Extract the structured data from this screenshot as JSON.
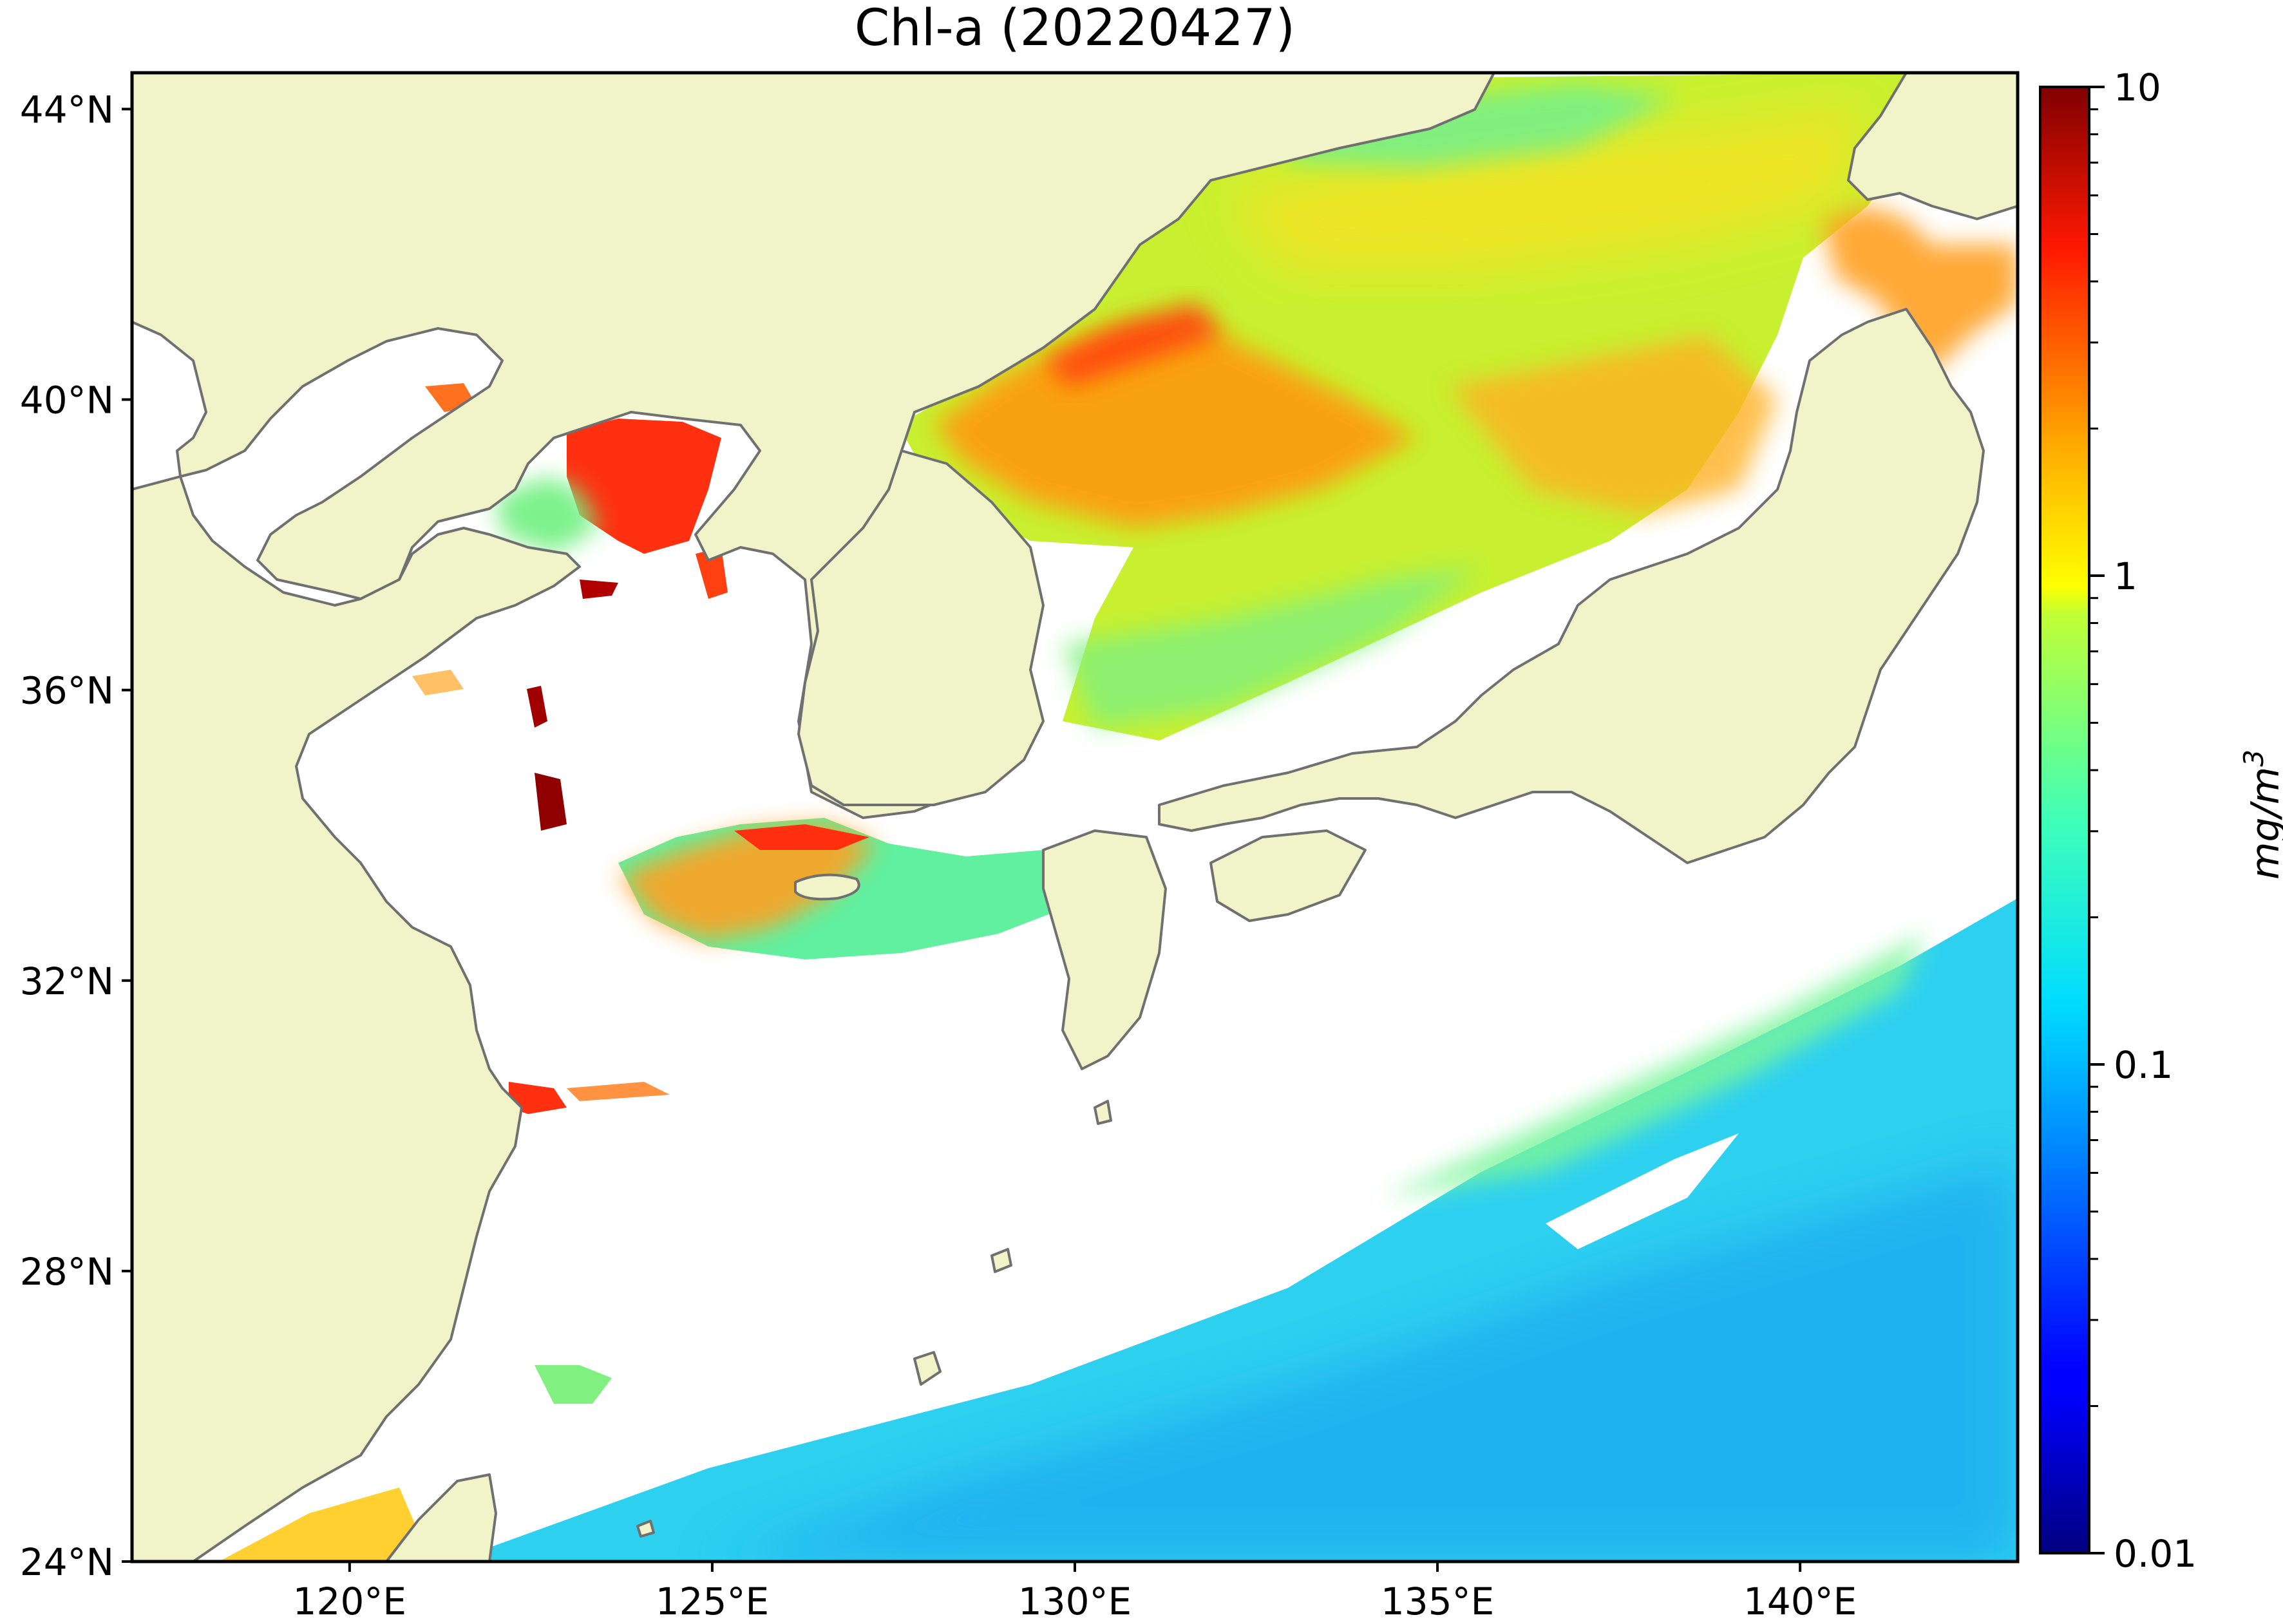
{
  "title": "Chl-a (20220427)",
  "map": {
    "lon_range": [
      117,
      143
    ],
    "lat_range": [
      24,
      44.5
    ],
    "land_color": "#f0f4c8",
    "ocean_nodata_color": "#ffffff",
    "coastline_color": "#707070",
    "lat_ticks": [
      {
        "value": 44,
        "label": "44°N"
      },
      {
        "value": 40,
        "label": "40°N"
      },
      {
        "value": 36,
        "label": "36°N"
      },
      {
        "value": 32,
        "label": "32°N"
      },
      {
        "value": 28,
        "label": "28°N"
      },
      {
        "value": 24,
        "label": "24°N"
      }
    ],
    "lon_ticks": [
      {
        "value": 120,
        "label": "120°E"
      },
      {
        "value": 125,
        "label": "125°E"
      },
      {
        "value": 130,
        "label": "130°E"
      },
      {
        "value": 135,
        "label": "135°E"
      },
      {
        "value": 140,
        "label": "140°E"
      }
    ]
  },
  "colorbar": {
    "label": "mg/m",
    "label_superscript": "3",
    "scale": "log",
    "range": [
      0.01,
      10
    ],
    "colormap": "jet",
    "ticks": [
      {
        "value": 10,
        "label": "10"
      },
      {
        "value": 1,
        "label": "1"
      },
      {
        "value": 0.1,
        "label": "0.1"
      },
      {
        "value": 0.01,
        "label": "0.01"
      }
    ],
    "minor_ticks": [
      0.02,
      0.03,
      0.04,
      0.05,
      0.06,
      0.07,
      0.08,
      0.09,
      0.2,
      0.3,
      0.4,
      0.5,
      0.6,
      0.7,
      0.8,
      0.9,
      2,
      3,
      4,
      5,
      6,
      7,
      8,
      9
    ]
  }
}
